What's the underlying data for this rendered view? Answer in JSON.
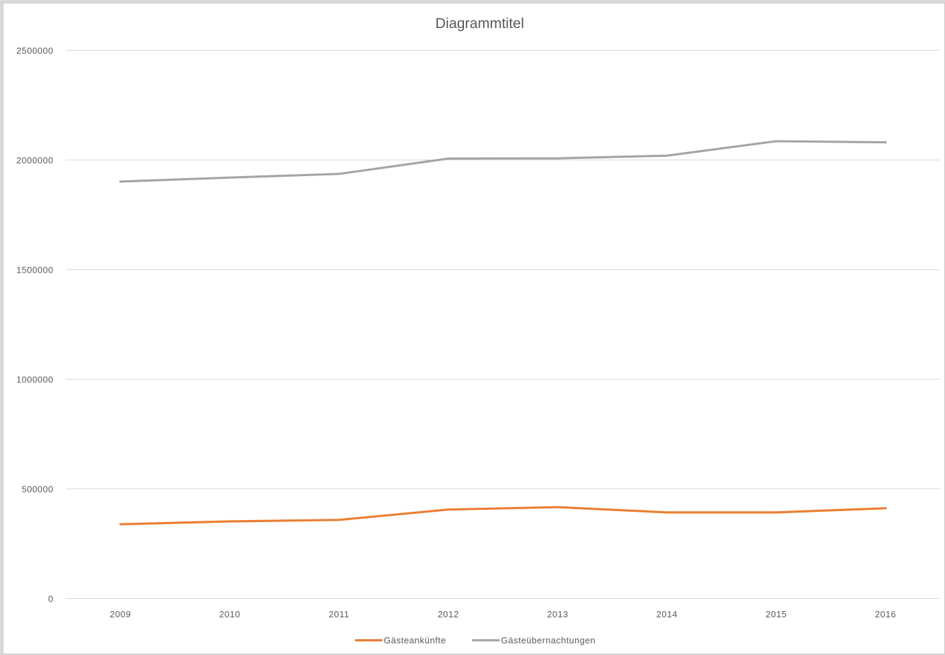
{
  "chart_data": {
    "type": "line",
    "title": "Diagrammtitel",
    "xlabel": "",
    "ylabel": "",
    "categories": [
      "2009",
      "2010",
      "2011",
      "2012",
      "2013",
      "2014",
      "2015",
      "2016"
    ],
    "ylim": [
      0,
      2500000
    ],
    "yticks": [
      0,
      500000,
      1000000,
      1500000,
      2000000,
      2500000
    ],
    "ytick_labels": [
      "0",
      "500000",
      "1000000",
      "1500000",
      "2000000",
      "2500000"
    ],
    "grid": true,
    "legend_position": "bottom",
    "series": [
      {
        "name": "Gästeankünfte",
        "color": "#ed7d31",
        "values": [
          337000,
          350000,
          357000,
          404000,
          415000,
          391000,
          391000,
          410000
        ]
      },
      {
        "name": "Gästeübernachtungen",
        "color": "#a5a5a5",
        "values": [
          1900000,
          1918000,
          1935000,
          2005000,
          2006000,
          2018000,
          2084000,
          2079000
        ]
      }
    ]
  }
}
